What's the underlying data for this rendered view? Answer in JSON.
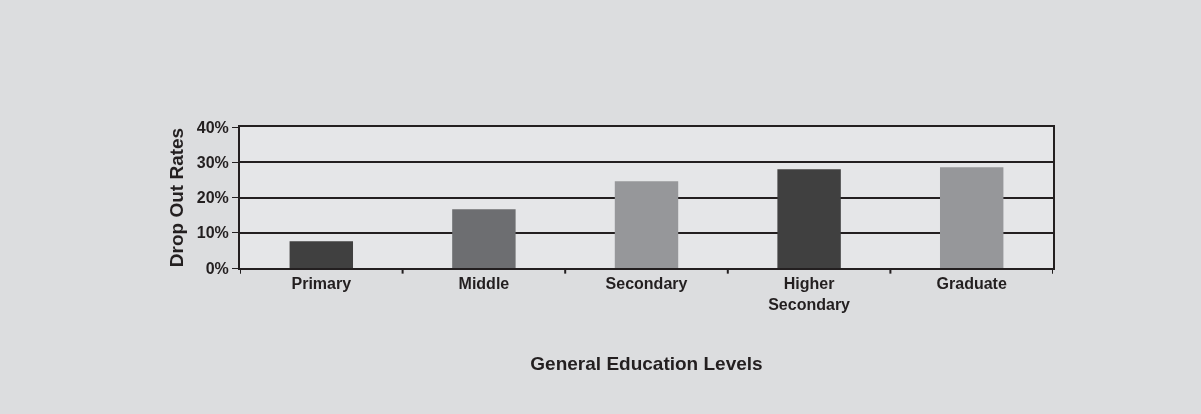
{
  "chart_data": {
    "type": "bar",
    "xlabel": "General Education Levels",
    "ylabel": "Drop Out Rates",
    "categories": [
      "Primary",
      "Middle",
      "Secondary",
      "Higher Secondary",
      "Graduate"
    ],
    "values": [
      7.6,
      16.7,
      24.6,
      28.0,
      28.6
    ],
    "colors": [
      "#404040",
      "#6d6e71",
      "#96979a",
      "#404040",
      "#96979a"
    ],
    "ylim": [
      0,
      40
    ],
    "yticks": [
      {
        "value": 0,
        "label": "0%"
      },
      {
        "value": 10,
        "label": "10%"
      },
      {
        "value": 20,
        "label": "20%"
      },
      {
        "value": 30,
        "label": "30%"
      },
      {
        "value": 40,
        "label": "40%"
      }
    ],
    "grid": "y"
  }
}
